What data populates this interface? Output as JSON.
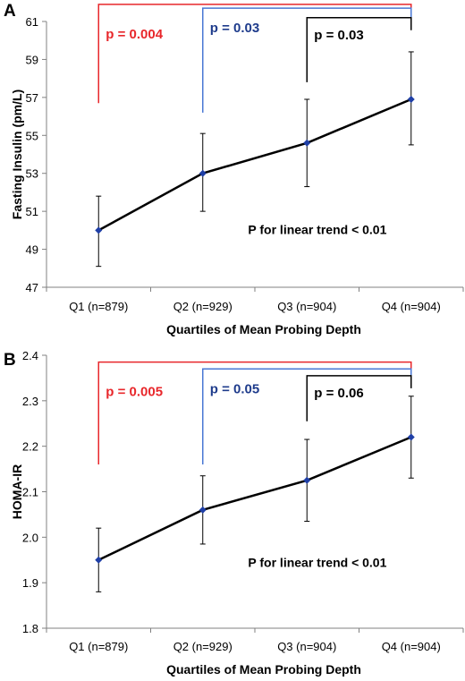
{
  "colors": {
    "axis": "#808080",
    "line": "#000000",
    "marker": "#1f3fa6",
    "red": "#e8272b",
    "blue": "#4a78d4",
    "blue_text": "#1f3c8c",
    "black": "#000000"
  },
  "chart_data": [
    {
      "type": "line",
      "panel_label": "A",
      "ylabel": "Fasting Insulin (pm/L)",
      "xlabel": "Quartiles of Mean Probing Depth",
      "categories": [
        "Q1 (n=879)",
        "Q2 (n=929)",
        "Q3 (n=904)",
        "Q4 (n=904)"
      ],
      "ylim": [
        47,
        61
      ],
      "yticks": [
        "47",
        "49",
        "51",
        "53",
        "55",
        "57",
        "59",
        "61"
      ],
      "ytick_values": [
        47,
        49,
        51,
        53,
        55,
        57,
        59,
        61
      ],
      "grid": false,
      "series": [
        {
          "values": [
            50.0,
            53.0,
            54.6,
            56.9
          ],
          "error_low": [
            48.1,
            51.0,
            52.3,
            54.5
          ],
          "error_high": [
            51.8,
            55.1,
            56.9,
            59.4
          ]
        }
      ],
      "comparisons": [
        {
          "from": 0,
          "to": 3,
          "label": "p = 0.004",
          "color": "red",
          "top": 61.9,
          "low": 56.7
        },
        {
          "from": 1,
          "to": 3,
          "label": "p = 0.03",
          "color": "blue",
          "top": 61.7,
          "low": 56.2
        },
        {
          "from": 2,
          "to": 3,
          "label": "p = 0.03",
          "color": "black",
          "top": 61.2,
          "low": 57.8
        }
      ],
      "annotation": "P for linear trend < 0.01",
      "annotation_pos": {
        "cat": 2.6,
        "y": 49.8
      }
    },
    {
      "type": "line",
      "panel_label": "B",
      "ylabel": "HOMA-IR",
      "xlabel": "Quartiles of Mean Probing Depth",
      "categories": [
        "Q1 (n=879)",
        "Q2 (n=929)",
        "Q3 (n=904)",
        "Q4 (n=904)"
      ],
      "ylim": [
        1.8,
        2.4
      ],
      "yticks": [
        "1.8",
        "1.9",
        "2.0",
        "2.1",
        "2.2",
        "2.3",
        "2.4"
      ],
      "ytick_values": [
        1.8,
        1.9,
        2.0,
        2.1,
        2.2,
        2.3,
        2.4
      ],
      "grid": false,
      "series": [
        {
          "values": [
            1.95,
            2.06,
            2.125,
            2.22
          ],
          "error_low": [
            1.88,
            1.985,
            2.035,
            2.13
          ],
          "error_high": [
            2.02,
            2.135,
            2.215,
            2.31
          ]
        }
      ],
      "comparisons": [
        {
          "from": 0,
          "to": 3,
          "label": "p = 0.005",
          "color": "red",
          "top": 2.385,
          "low": 2.16
        },
        {
          "from": 1,
          "to": 3,
          "label": "p = 0.05",
          "color": "blue",
          "top": 2.37,
          "low": 2.16
        },
        {
          "from": 2,
          "to": 3,
          "label": "p = 0.06",
          "color": "black",
          "top": 2.355,
          "low": 2.255
        }
      ],
      "annotation": "P for linear trend < 0.01",
      "annotation_pos": {
        "cat": 2.6,
        "y": 1.935
      }
    }
  ]
}
